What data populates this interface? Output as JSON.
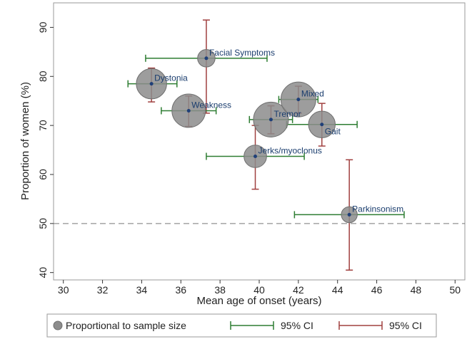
{
  "chart_data": {
    "type": "scatter",
    "xlabel": "Mean age of onset (years)",
    "ylabel": "Proportion of women (%)",
    "xlim": [
      29.5,
      50.5
    ],
    "ylim": [
      38.5,
      95
    ],
    "xticks": [
      30,
      32,
      34,
      36,
      38,
      40,
      42,
      44,
      46,
      48,
      50
    ],
    "yticks": [
      40,
      50,
      60,
      70,
      80,
      90
    ],
    "reference_line_y": 50,
    "grid": false,
    "colors": {
      "bubble": "#8c8c8c",
      "bubble_edge": "#6e6e6e",
      "center_dot": "#1f3f78",
      "x_ci": "#2e7d32",
      "y_ci": "#a0403f",
      "label": "#1a3d6e",
      "reference_line": "#777777"
    },
    "points": [
      {
        "label": "Facial Symptoms",
        "x": 37.3,
        "y": 83.7,
        "size": 6,
        "xci": [
          34.2,
          40.4
        ],
        "yci": [
          72.5,
          91.5
        ]
      },
      {
        "label": "Dystonia",
        "x": 34.5,
        "y": 78.5,
        "size": 18,
        "xci": [
          33.3,
          35.8
        ],
        "yci": [
          74.8,
          81.7
        ]
      },
      {
        "label": "Weakness",
        "x": 36.4,
        "y": 73.0,
        "size": 22,
        "xci": [
          35.0,
          37.8
        ],
        "yci": [
          69.8,
          76.0
        ]
      },
      {
        "label": "Tremor",
        "x": 40.6,
        "y": 71.2,
        "size": 24,
        "xci": [
          39.5,
          41.7
        ],
        "yci": [
          68.3,
          74.0
        ]
      },
      {
        "label": "Mixed",
        "x": 42.0,
        "y": 75.3,
        "size": 24,
        "xci": [
          41.0,
          43.0
        ],
        "yci": [
          72.5,
          78.0
        ]
      },
      {
        "label": "Gait",
        "x": 43.2,
        "y": 70.2,
        "size": 14,
        "xci": [
          41.4,
          45.0
        ],
        "yci": [
          65.8,
          74.5
        ]
      },
      {
        "label": "Jerks/myoclonus",
        "x": 39.8,
        "y": 63.7,
        "size": 10,
        "xci": [
          37.3,
          42.3
        ],
        "yci": [
          57.0,
          70.0
        ]
      },
      {
        "label": "Parkinsonism",
        "x": 44.6,
        "y": 51.8,
        "size": 5,
        "xci": [
          41.8,
          47.4
        ],
        "yci": [
          40.5,
          63.0
        ]
      }
    ],
    "legend": {
      "placement": "bottom",
      "entries": [
        {
          "type": "bubble",
          "label": "Proportional to sample size"
        },
        {
          "type": "x_ci",
          "label": "95% CI"
        },
        {
          "type": "y_ci",
          "label": "95% CI"
        }
      ]
    }
  }
}
